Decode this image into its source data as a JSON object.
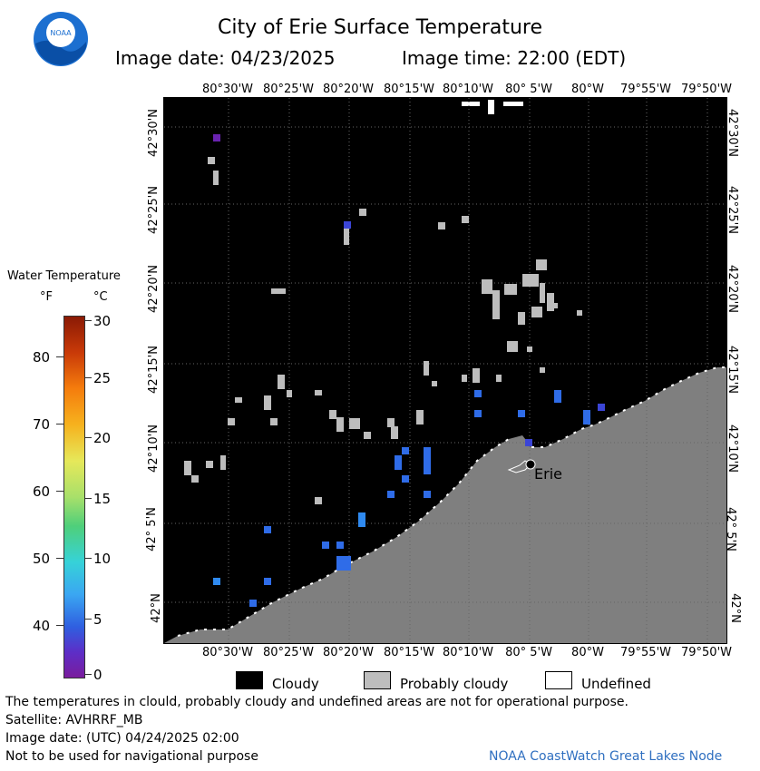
{
  "header": {
    "title": "City of Erie Surface Temperature",
    "image_date": "Image date: 04/23/2025",
    "image_time": "Image time: 22:00 (EDT)"
  },
  "axes": {
    "lon_labels": [
      "80°30'W",
      "80°25'W",
      "80°20'W",
      "80°15'W",
      "80°10'W",
      "80° 5'W",
      "80°W",
      "79°55'W",
      "79°50'W"
    ],
    "lat_labels": [
      "42°30'N",
      "42°25'N",
      "42°20'N",
      "42°15'N",
      "42°10'N",
      "42° 5'N",
      "42°N"
    ]
  },
  "map": {
    "city_label": "Erie",
    "colors": {
      "water": "#000000",
      "land": "#7f7f7f",
      "probably_cloudy": "#bdbdbd",
      "undefined": "#ffffff"
    }
  },
  "legend": {
    "title": "Water Temperature",
    "unit_f": "°F",
    "unit_c": "°C",
    "f_ticks": [
      "80",
      "70",
      "60",
      "50",
      "40"
    ],
    "c_ticks": [
      "30",
      "25",
      "20",
      "15",
      "10",
      "5",
      "0"
    ]
  },
  "key": {
    "cloudy": "Cloudy",
    "probably_cloudy": "Probably cloudy",
    "undefined": "Undefined"
  },
  "footer": {
    "disclaimer": "The temperatures in clould, probably cloudy and undefined areas are not for operational purpose.",
    "satellite": "Satellite: AVHRRF_MB",
    "utc_date": "Image date: (UTC) 04/24/2025  02:00",
    "nav_warning": "Not to be used for navigational purpose",
    "credit": "NOAA CoastWatch Great Lakes Node"
  },
  "logo": {
    "text": "NOAA"
  }
}
